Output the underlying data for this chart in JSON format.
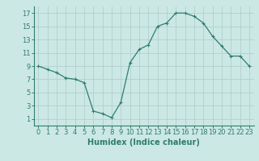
{
  "x": [
    0,
    1,
    2,
    3,
    4,
    5,
    6,
    7,
    8,
    9,
    10,
    11,
    12,
    13,
    14,
    15,
    16,
    17,
    18,
    19,
    20,
    21,
    22,
    23
  ],
  "y": [
    9.0,
    8.5,
    8.0,
    7.2,
    7.0,
    6.5,
    2.2,
    1.8,
    1.2,
    3.5,
    9.5,
    11.5,
    12.2,
    15.0,
    15.5,
    17.0,
    17.0,
    16.5,
    15.5,
    13.5,
    12.0,
    10.5,
    10.5,
    9.0
  ],
  "xlabel": "Humidex (Indice chaleur)",
  "xlim": [
    -0.5,
    23.5
  ],
  "ylim": [
    0,
    18
  ],
  "yticks": [
    1,
    3,
    5,
    7,
    9,
    11,
    13,
    15,
    17
  ],
  "xticks": [
    0,
    1,
    2,
    3,
    4,
    5,
    6,
    7,
    8,
    9,
    10,
    11,
    12,
    13,
    14,
    15,
    16,
    17,
    18,
    19,
    20,
    21,
    22,
    23
  ],
  "line_color": "#2e7d6e",
  "marker": "+",
  "marker_size": 3.5,
  "marker_linewidth": 0.8,
  "linewidth": 0.9,
  "bg_color": "#cce8e4",
  "grid_color": "#b0d0cc",
  "tick_color": "#2e7d6e",
  "label_fontsize": 6,
  "xlabel_fontsize": 7
}
